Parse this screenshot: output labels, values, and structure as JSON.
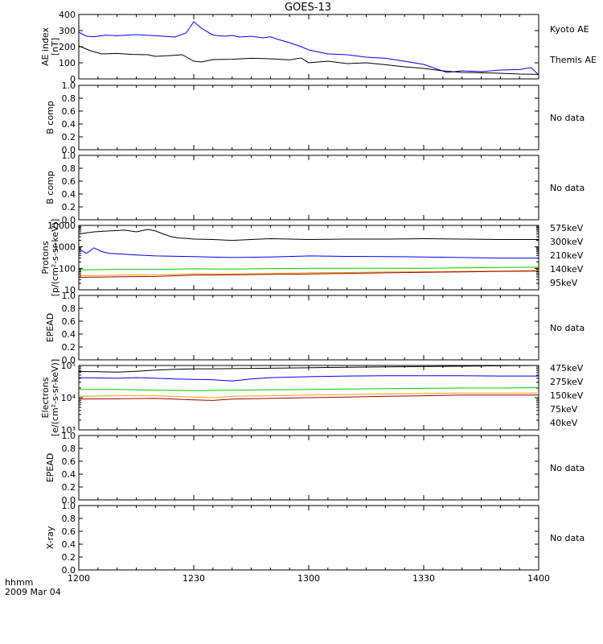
{
  "title": "GOES-13",
  "time_label": "hhmm",
  "date_label": "2009 Mar 04",
  "x_ticks": [
    "1200",
    "1230",
    "1300",
    "1330",
    "1400"
  ],
  "colors": {
    "black": "#000000",
    "blue": "#0000ff",
    "green": "#00cc00",
    "orange": "#ff9900",
    "darkred": "#990000"
  },
  "chart_data": [
    {
      "type": "line",
      "id": "ae",
      "ylabel": [
        "AE index",
        "[nT]"
      ],
      "ylim": [
        0,
        400
      ],
      "yticks": [
        "0",
        "100",
        "200",
        "300",
        "400"
      ],
      "xlim": [
        0,
        120
      ],
      "x_unit": "minutes after 1200 UT",
      "series": [
        {
          "name": "Kyoto AE",
          "color": "#0000ff",
          "x": [
            0,
            2,
            4,
            7,
            10,
            15,
            20,
            25,
            28,
            30,
            32,
            35,
            38,
            40,
            42,
            45,
            48,
            50,
            52,
            55,
            58,
            60,
            65,
            70,
            75,
            80,
            85,
            90,
            93,
            96,
            100,
            105,
            110,
            115,
            118,
            120
          ],
          "values": [
            290,
            265,
            262,
            272,
            268,
            275,
            268,
            260,
            285,
            355,
            315,
            272,
            265,
            270,
            260,
            265,
            255,
            262,
            245,
            225,
            200,
            180,
            155,
            150,
            135,
            128,
            110,
            90,
            65,
            40,
            50,
            45,
            55,
            58,
            70,
            25
          ]
        },
        {
          "name": "Themis AE",
          "color": "#000000",
          "x": [
            0,
            3,
            6,
            10,
            14,
            18,
            20,
            24,
            27,
            30,
            32,
            35,
            40,
            45,
            50,
            55,
            58,
            60,
            65,
            70,
            75,
            80,
            85,
            90,
            95,
            100,
            105,
            110,
            115,
            120
          ],
          "values": [
            205,
            175,
            155,
            158,
            152,
            150,
            140,
            145,
            150,
            110,
            105,
            120,
            122,
            128,
            125,
            118,
            130,
            100,
            110,
            95,
            100,
            88,
            75,
            65,
            50,
            40,
            38,
            35,
            30,
            28
          ]
        }
      ]
    },
    {
      "type": "line",
      "id": "bcomp1",
      "ylabel": [
        "B comp"
      ],
      "ylim": [
        0,
        1
      ],
      "yticks": [
        "0.0",
        "0.2",
        "0.4",
        "0.6",
        "0.8",
        "1.0"
      ],
      "status": "No data",
      "series": []
    },
    {
      "type": "line",
      "id": "bcomp2",
      "ylabel": [
        "B comp"
      ],
      "ylim": [
        0,
        1
      ],
      "yticks": [
        "0.0",
        "0.2",
        "0.4",
        "0.6",
        "0.8",
        "1.0"
      ],
      "status": "No data",
      "series": []
    },
    {
      "type": "line",
      "id": "protons",
      "ylabel": [
        "Protons",
        "[p/(cm²-s-sr-keV)]"
      ],
      "scale": "log",
      "ylim": [
        10,
        10000
      ],
      "yticks": [
        "10",
        "100",
        "1000",
        "10000"
      ],
      "xlim": [
        0,
        120
      ],
      "series": [
        {
          "name": "95keV",
          "color": "#000000",
          "x": [
            0,
            4,
            8,
            12,
            15,
            18,
            20,
            22,
            24,
            26,
            28,
            30,
            35,
            40,
            45,
            50,
            55,
            60,
            70,
            80,
            90,
            100,
            110,
            120
          ],
          "values": [
            4000,
            5000,
            5500,
            6000,
            5000,
            6500,
            5500,
            4000,
            3000,
            2600,
            2500,
            2300,
            2200,
            2000,
            2200,
            2400,
            2300,
            2200,
            2300,
            2300,
            2400,
            2300,
            2200,
            2200
          ]
        },
        {
          "name": "140keV",
          "color": "#0000ff",
          "x": [
            0,
            2,
            4,
            6,
            8,
            10,
            15,
            20,
            30,
            40,
            50,
            60,
            70,
            80,
            90,
            100,
            110,
            120
          ],
          "values": [
            800,
            500,
            900,
            600,
            500,
            480,
            420,
            380,
            350,
            320,
            340,
            380,
            360,
            350,
            340,
            320,
            300,
            300
          ]
        },
        {
          "name": "210keV",
          "color": "#00cc00",
          "x": [
            0,
            10,
            20,
            30,
            40,
            50,
            60,
            70,
            80,
            90,
            100,
            110,
            120
          ],
          "values": [
            85,
            90,
            90,
            95,
            92,
            98,
            100,
            100,
            102,
            100,
            105,
            110,
            112
          ]
        },
        {
          "name": "300keV",
          "color": "#ff9900",
          "x": [
            0,
            10,
            20,
            30,
            40,
            50,
            60,
            70,
            80,
            90,
            100,
            110,
            120
          ],
          "values": [
            45,
            48,
            50,
            55,
            55,
            58,
            62,
            64,
            68,
            70,
            72,
            75,
            80
          ]
        },
        {
          "name": "575keV",
          "color": "#990000",
          "x": [
            0,
            10,
            20,
            30,
            40,
            50,
            60,
            70,
            80,
            90,
            100,
            110,
            120
          ],
          "values": [
            38,
            40,
            42,
            48,
            50,
            52,
            55,
            58,
            62,
            65,
            68,
            72,
            75
          ]
        }
      ]
    },
    {
      "type": "line",
      "id": "epead1",
      "ylabel": [
        "EPEAD"
      ],
      "ylim": [
        0,
        1
      ],
      "yticks": [
        "0.0",
        "0.2",
        "0.4",
        "0.6",
        "0.8",
        "1.0"
      ],
      "status": "No data",
      "series": []
    },
    {
      "type": "line",
      "id": "electrons",
      "ylabel": [
        "Electrons",
        "[e/(cm²-s-sr-keV)]"
      ],
      "scale": "log",
      "ylim": [
        1000,
        100000
      ],
      "yticks": [
        "10³",
        "10⁴",
        "10⁵"
      ],
      "xlim": [
        0,
        120
      ],
      "series": [
        {
          "name": "40keV",
          "color": "#000000",
          "x": [
            0,
            5,
            10,
            15,
            20,
            25,
            30,
            40,
            50,
            60,
            70,
            80,
            90,
            100,
            110,
            120
          ],
          "values": [
            65000,
            64000,
            62000,
            66000,
            72000,
            76000,
            78000,
            80000,
            82000,
            85000,
            88000,
            90000,
            92000,
            95000,
            98000,
            100000
          ]
        },
        {
          "name": "75keV",
          "color": "#0000ff",
          "x": [
            0,
            5,
            10,
            15,
            20,
            25,
            30,
            35,
            40,
            45,
            50,
            60,
            70,
            80,
            90,
            100,
            110,
            120
          ],
          "values": [
            42000,
            41000,
            40000,
            42000,
            40000,
            38000,
            37000,
            36000,
            33000,
            38000,
            42000,
            45000,
            47000,
            48000,
            48000,
            48000,
            47000,
            47000
          ]
        },
        {
          "name": "150keV",
          "color": "#00cc00",
          "x": [
            0,
            10,
            20,
            30,
            40,
            50,
            60,
            70,
            80,
            90,
            100,
            110,
            120
          ],
          "values": [
            18000,
            18000,
            17000,
            16500,
            17000,
            17500,
            18000,
            18500,
            19000,
            19500,
            20000,
            20000,
            20500
          ]
        },
        {
          "name": "275keV",
          "color": "#ff9900",
          "x": [
            0,
            10,
            20,
            30,
            35,
            40,
            50,
            60,
            70,
            80,
            90,
            100,
            110,
            120
          ],
          "values": [
            11000,
            11500,
            11500,
            10500,
            10000,
            11000,
            11500,
            12000,
            12500,
            13000,
            13500,
            14000,
            14000,
            14000
          ]
        },
        {
          "name": "475keV",
          "color": "#990000",
          "x": [
            0,
            10,
            20,
            30,
            35,
            40,
            50,
            60,
            70,
            80,
            90,
            100,
            110,
            120
          ],
          "values": [
            9000,
            9200,
            9500,
            8500,
            8200,
            9000,
            9500,
            10000,
            10500,
            11000,
            11500,
            12000,
            12000,
            12000
          ]
        }
      ]
    },
    {
      "type": "line",
      "id": "epead2",
      "ylabel": [
        "EPEAD"
      ],
      "ylim": [
        0,
        1
      ],
      "yticks": [
        "0.0",
        "0.2",
        "0.4",
        "0.6",
        "0.8",
        "1.0"
      ],
      "status": "No data",
      "series": []
    },
    {
      "type": "line",
      "id": "xray",
      "ylabel": [
        "X-ray"
      ],
      "ylim": [
        0,
        1
      ],
      "yticks": [
        "0.0",
        "0.2",
        "0.4",
        "0.6",
        "0.8",
        "1.0"
      ],
      "status": "No data",
      "series": []
    }
  ]
}
